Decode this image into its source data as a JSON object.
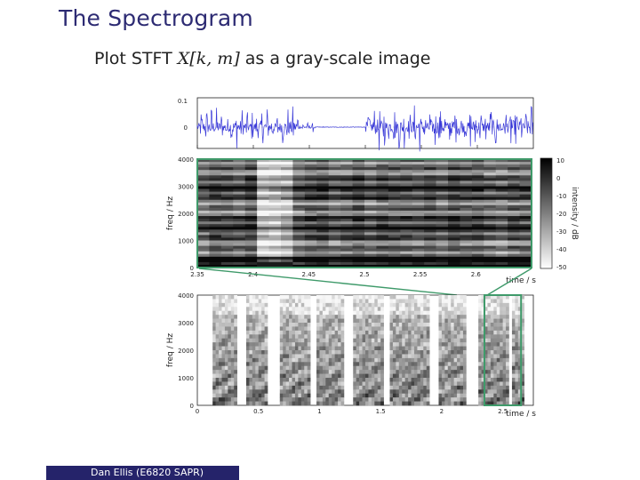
{
  "slide": {
    "title": "The Spectrogram",
    "subtitle_prefix": "Plot STFT ",
    "subtitle_math": "X[k, m]",
    "subtitle_suffix": " as a gray-scale image",
    "footer": "Dan Ellis  (E6820 SAPR)"
  },
  "chart_data": [
    {
      "type": "line",
      "name_of_panel": "waveform",
      "x": [
        2.35,
        2.4,
        2.45,
        2.5,
        2.55,
        2.6
      ],
      "ylim": [
        -0.1,
        0.1
      ],
      "y_ticks": [
        "0.1",
        "0"
      ],
      "series_color": "#3a3ad8"
    },
    {
      "type": "heatmap",
      "name_of_panel": "zoomed-spectrogram",
      "ylabel": "freq / Hz",
      "xlabel": "time / s",
      "xlim": [
        2.35,
        2.65
      ],
      "ylim": [
        0,
        4000
      ],
      "x_ticks": [
        "2.35",
        "2.4",
        "2.45",
        "2.5",
        "2.55",
        "2.6"
      ],
      "y_ticks": [
        "4000",
        "3000",
        "2000",
        "1000",
        "0"
      ],
      "colorbar_label": "intensity / dB",
      "colorbar_ticks": [
        "10",
        "0",
        "-10",
        "-20",
        "-30",
        "-40",
        "-50"
      ],
      "colorbar_range": [
        -50,
        10
      ]
    },
    {
      "type": "heatmap",
      "name_of_panel": "full-spectrogram",
      "ylabel": "freq / Hz",
      "xlabel": "time / s",
      "xlim": [
        0,
        2.75
      ],
      "ylim": [
        0,
        4000
      ],
      "x_ticks": [
        "0",
        "0.5",
        "1",
        "1.5",
        "2",
        "2.5"
      ],
      "y_ticks": [
        "4000",
        "3000",
        "2000",
        "1000",
        "0"
      ],
      "highlight_range": [
        2.35,
        2.65
      ],
      "highlight_color": "#3f9a6a"
    }
  ]
}
